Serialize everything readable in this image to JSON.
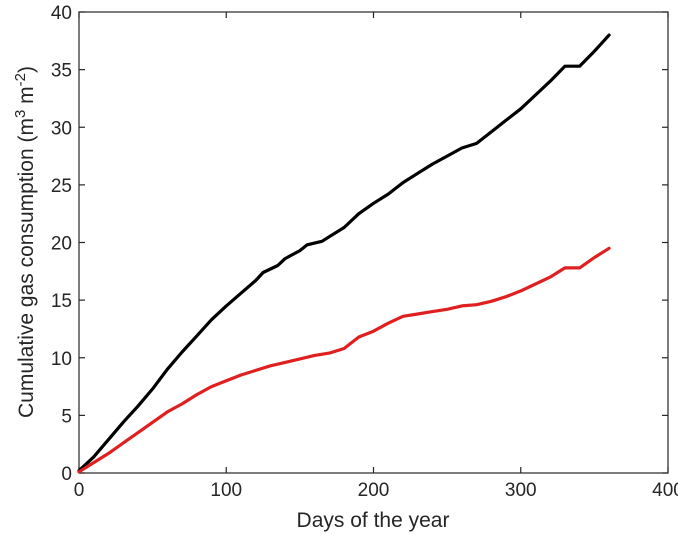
{
  "chart_data": {
    "type": "line",
    "title": "",
    "xlabel": "Days of the year",
    "ylabel": {
      "prefix": "Cumulative gas consumption (m",
      "sup1": "3",
      "middle": " m",
      "sup2": "-2",
      "suffix": ")"
    },
    "xlim": [
      0,
      400
    ],
    "ylim": [
      0,
      40
    ],
    "xticks": [
      0,
      100,
      200,
      300,
      400
    ],
    "yticks": [
      0,
      5,
      10,
      15,
      20,
      25,
      30,
      35,
      40
    ],
    "grid": false,
    "legend": "none",
    "series": [
      {
        "color": "#000000",
        "points": [
          [
            0,
            0.2
          ],
          [
            10,
            1.4
          ],
          [
            20,
            2.9
          ],
          [
            30,
            4.4
          ],
          [
            40,
            5.8
          ],
          [
            50,
            7.3
          ],
          [
            60,
            9.0
          ],
          [
            70,
            10.5
          ],
          [
            80,
            11.9
          ],
          [
            90,
            13.3
          ],
          [
            100,
            14.5
          ],
          [
            110,
            15.6
          ],
          [
            120,
            16.7
          ],
          [
            125,
            17.4
          ],
          [
            135,
            18.0
          ],
          [
            140,
            18.6
          ],
          [
            150,
            19.3
          ],
          [
            155,
            19.8
          ],
          [
            165,
            20.1
          ],
          [
            170,
            20.5
          ],
          [
            180,
            21.3
          ],
          [
            190,
            22.5
          ],
          [
            200,
            23.4
          ],
          [
            210,
            24.2
          ],
          [
            220,
            25.2
          ],
          [
            230,
            26.0
          ],
          [
            240,
            26.8
          ],
          [
            250,
            27.5
          ],
          [
            260,
            28.2
          ],
          [
            270,
            28.6
          ],
          [
            280,
            29.6
          ],
          [
            290,
            30.6
          ],
          [
            300,
            31.6
          ],
          [
            310,
            32.8
          ],
          [
            320,
            34.0
          ],
          [
            330,
            35.3
          ],
          [
            340,
            35.3
          ],
          [
            350,
            36.6
          ],
          [
            360,
            38.0
          ]
        ]
      },
      {
        "color": "#e02020",
        "points": [
          [
            0,
            0.1
          ],
          [
            10,
            0.9
          ],
          [
            20,
            1.7
          ],
          [
            30,
            2.6
          ],
          [
            40,
            3.5
          ],
          [
            50,
            4.4
          ],
          [
            60,
            5.3
          ],
          [
            70,
            6.0
          ],
          [
            80,
            6.8
          ],
          [
            90,
            7.5
          ],
          [
            100,
            8.0
          ],
          [
            110,
            8.5
          ],
          [
            120,
            8.9
          ],
          [
            130,
            9.3
          ],
          [
            140,
            9.6
          ],
          [
            150,
            9.9
          ],
          [
            160,
            10.2
          ],
          [
            170,
            10.4
          ],
          [
            180,
            10.8
          ],
          [
            190,
            11.8
          ],
          [
            200,
            12.3
          ],
          [
            210,
            13.0
          ],
          [
            220,
            13.6
          ],
          [
            230,
            13.8
          ],
          [
            240,
            14.0
          ],
          [
            250,
            14.2
          ],
          [
            260,
            14.5
          ],
          [
            270,
            14.6
          ],
          [
            280,
            14.9
          ],
          [
            290,
            15.3
          ],
          [
            300,
            15.8
          ],
          [
            310,
            16.4
          ],
          [
            320,
            17.0
          ],
          [
            330,
            17.8
          ],
          [
            340,
            17.8
          ],
          [
            350,
            18.7
          ],
          [
            360,
            19.5
          ]
        ]
      }
    ]
  }
}
